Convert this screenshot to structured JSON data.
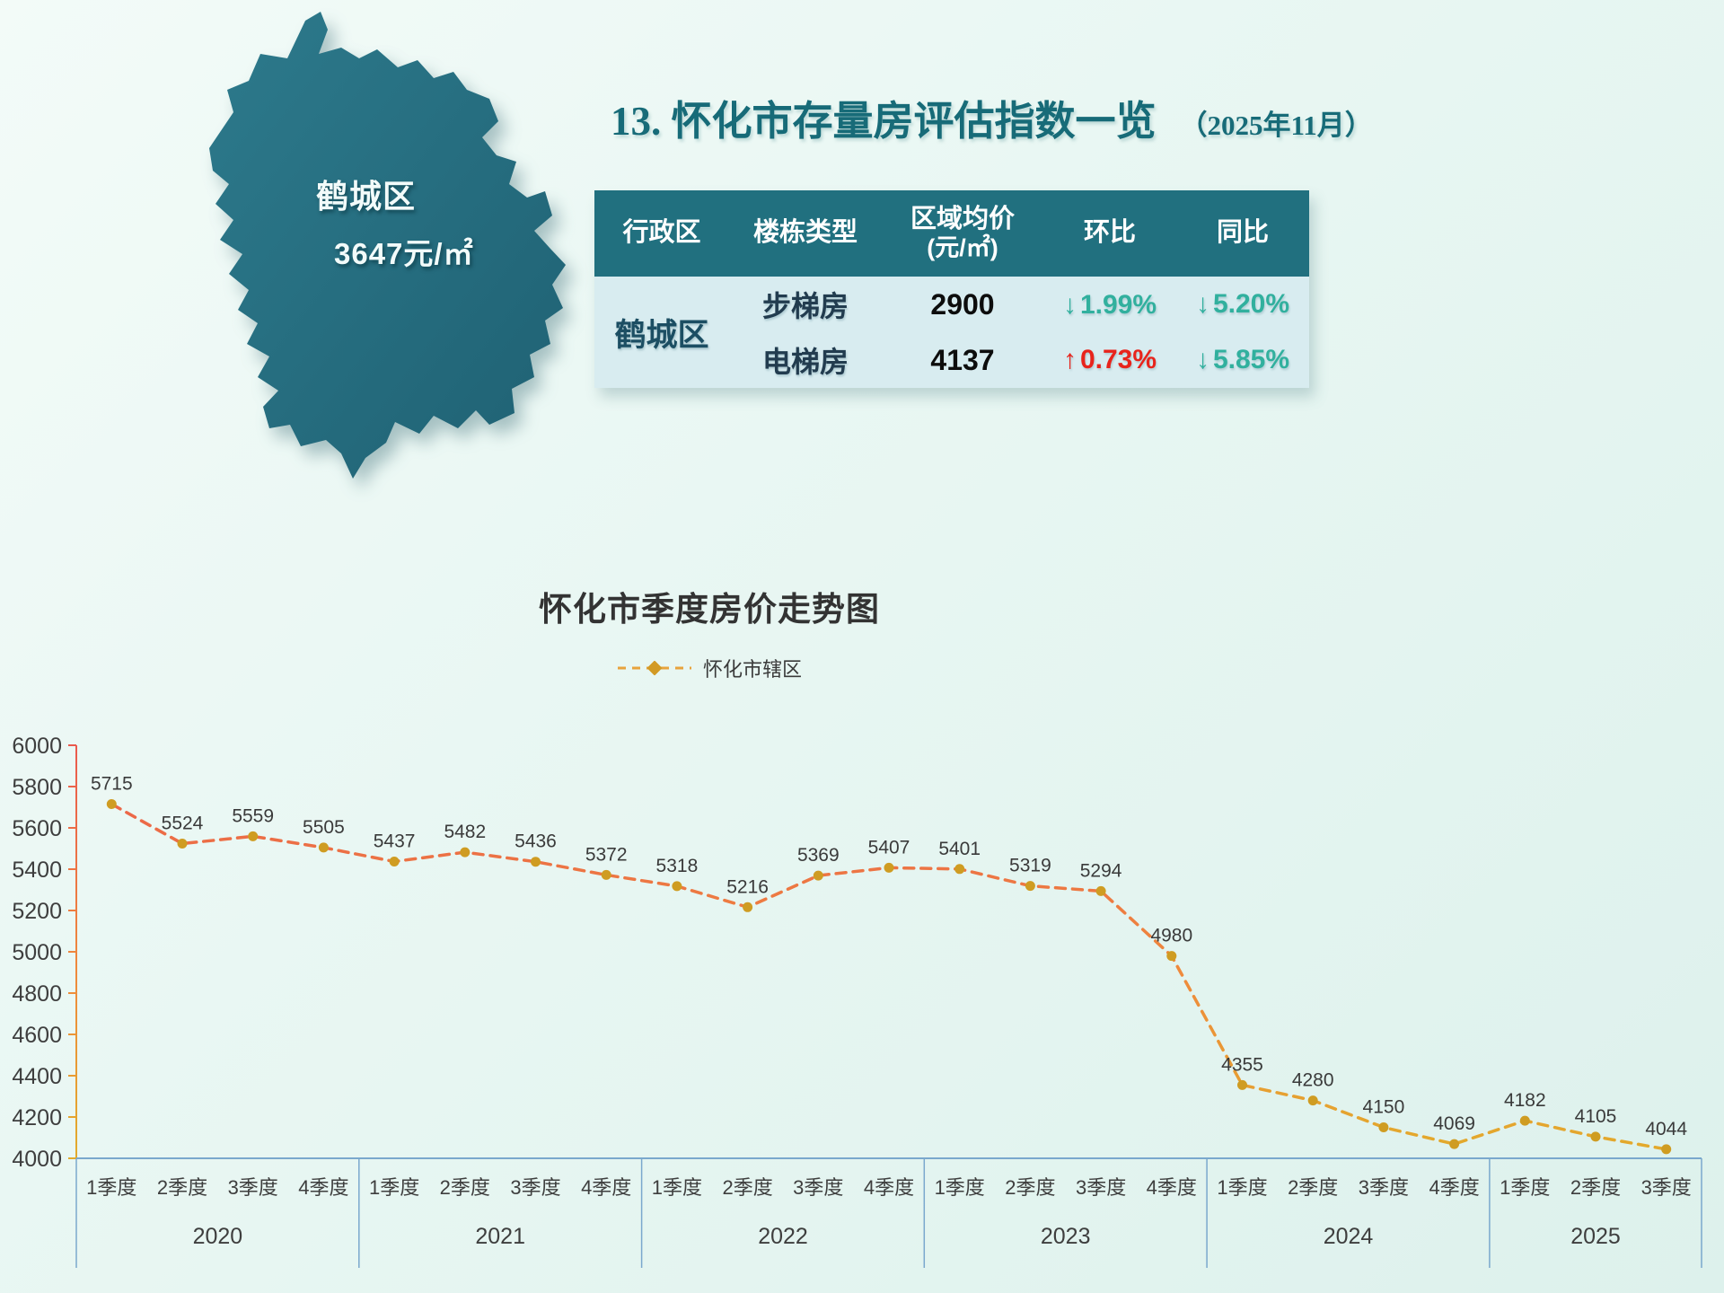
{
  "map": {
    "district_label": "鹤城区",
    "price_label": "3647元/㎡",
    "fill_dark": "#1f6173",
    "fill_light": "#2d7a8c"
  },
  "header": {
    "title": "13. 怀化市存量房评估指数一览",
    "date": "（2025年11月）"
  },
  "table": {
    "columns": [
      "行政区",
      "楼栋类型",
      "区域均价",
      "环比",
      "同比"
    ],
    "price_unit": "(元/㎡)",
    "district": "鹤城区",
    "rows": [
      {
        "type": "步梯房",
        "price": "2900",
        "mom_arrow": "↓",
        "mom_value": "1.99%",
        "mom_dir": "down",
        "yoy_arrow": "↓",
        "yoy_value": "5.20%",
        "yoy_dir": "down"
      },
      {
        "type": "电梯房",
        "price": "4137",
        "mom_arrow": "↑",
        "mom_value": "0.73%",
        "mom_dir": "up",
        "yoy_arrow": "↓",
        "yoy_value": "5.85%",
        "yoy_dir": "down"
      }
    ],
    "colors": {
      "up": "#e8241c",
      "down": "#31b09e",
      "header_bg": "#21707f",
      "body_bg": "#d8ecf0"
    }
  },
  "chart_data": {
    "type": "line",
    "title": "怀化市季度房价走势图",
    "legend": "怀化市辖区",
    "x_groups": [
      {
        "year": "2020",
        "quarters": [
          "1季度",
          "2季度",
          "3季度",
          "4季度"
        ]
      },
      {
        "year": "2021",
        "quarters": [
          "1季度",
          "2季度",
          "3季度",
          "4季度"
        ]
      },
      {
        "year": "2022",
        "quarters": [
          "1季度",
          "2季度",
          "3季度",
          "4季度"
        ]
      },
      {
        "year": "2023",
        "quarters": [
          "1季度",
          "2季度",
          "3季度",
          "4季度"
        ]
      },
      {
        "year": "2024",
        "quarters": [
          "1季度",
          "2季度",
          "3季度",
          "4季度"
        ]
      },
      {
        "year": "2025",
        "quarters": [
          "1季度",
          "2季度",
          "3季度"
        ]
      }
    ],
    "values": [
      5715,
      5524,
      5559,
      5505,
      5437,
      5482,
      5436,
      5372,
      5318,
      5216,
      5369,
      5407,
      5401,
      5319,
      5294,
      4980,
      4355,
      4280,
      4150,
      4069,
      4182,
      4105,
      4044
    ],
    "ylim": [
      4000,
      6000
    ],
    "ytick_step": 200,
    "grid": false,
    "legend_position": "top-center",
    "line_dash": true,
    "xlabel": "",
    "ylabel": "",
    "colors": {
      "line_top": "#ea5a4d",
      "line_mid": "#ef8a3c",
      "line_bottom": "#e2ab2b",
      "marker": "#cf9c22",
      "axis_x": "#7aa8cd",
      "label": "#3a3a3a"
    }
  }
}
